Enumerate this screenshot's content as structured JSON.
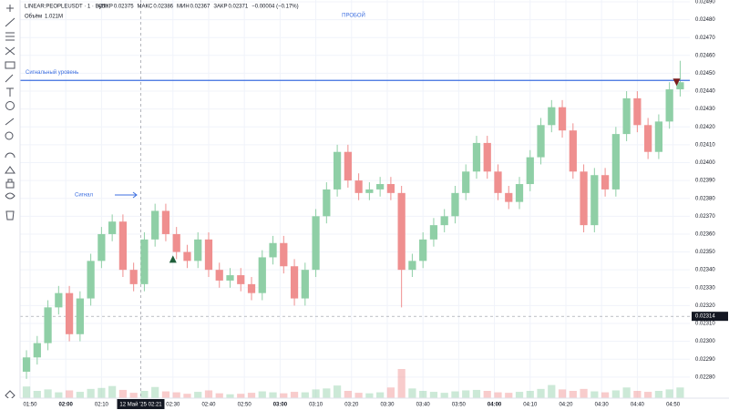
{
  "chart_data": {
    "type": "candlestick",
    "header": {
      "symbol": "LINEAR:PEOPLEUSDT · 1 · Bybit",
      "fields": [
        {
          "label": "ОТКР",
          "value": "0.02375"
        },
        {
          "label": "МАКС",
          "value": "0.02386"
        },
        {
          "label": "МИН",
          "value": "0.02367"
        },
        {
          "label": "ЗАКР",
          "value": "0.02371"
        }
      ],
      "change": "−0.00004 (−0.17%)",
      "volume_label": "Объём",
      "volume_value": "1.021M"
    },
    "title": "ПРОБОЙ",
    "level": {
      "label": "Сигнальный уровень",
      "value": 0.02446,
      "color": "#3d6fe0"
    },
    "signal_label": "Сигнал",
    "up_color": "#8fcfa6",
    "down_color": "#ef8f8f",
    "x": [
      109,
      112,
      115,
      118,
      121,
      124,
      127,
      130,
      133,
      136,
      139,
      142,
      145,
      148,
      151,
      154,
      157,
      160,
      163,
      166,
      169,
      172,
      175,
      178,
      181,
      184,
      187,
      190,
      193,
      196,
      199,
      202,
      205,
      208,
      211,
      214,
      217,
      220,
      223,
      226,
      229,
      232,
      235,
      238,
      241,
      244,
      247,
      250,
      253,
      256,
      259,
      262,
      265,
      268,
      271,
      274,
      277,
      280,
      283,
      286,
      289,
      292
    ],
    "open": [
      0.02283,
      0.02291,
      0.02299,
      0.02319,
      0.02327,
      0.02304,
      0.02324,
      0.02345,
      0.0236,
      0.02367,
      0.0234,
      0.02332,
      0.02357,
      0.02373,
      0.0236,
      0.0235,
      0.02345,
      0.02357,
      0.0234,
      0.02334,
      0.02337,
      0.02332,
      0.02327,
      0.02347,
      0.02355,
      0.02342,
      0.02324,
      0.0234,
      0.0237,
      0.02385,
      0.02406,
      0.0239,
      0.02383,
      0.02385,
      0.02388,
      0.02383,
      0.0234,
      0.02345,
      0.02357,
      0.02365,
      0.0237,
      0.02383,
      0.02395,
      0.02411,
      0.02395,
      0.02383,
      0.02378,
      0.02388,
      0.02403,
      0.02421,
      0.02431,
      0.02418,
      0.02395,
      0.02365,
      0.02393,
      0.02385,
      0.02416,
      0.02436,
      0.02421,
      0.02406,
      0.02423,
      0.02441
    ],
    "high": [
      0.02295,
      0.02303,
      0.02323,
      0.02331,
      0.02331,
      0.02328,
      0.02349,
      0.02364,
      0.02371,
      0.02371,
      0.02344,
      0.02361,
      0.02377,
      0.02377,
      0.02364,
      0.02354,
      0.02361,
      0.02361,
      0.02344,
      0.02341,
      0.02341,
      0.02336,
      0.02351,
      0.02359,
      0.02359,
      0.02346,
      0.02344,
      0.02374,
      0.02389,
      0.0241,
      0.0241,
      0.02394,
      0.02389,
      0.02392,
      0.02392,
      0.02387,
      0.02349,
      0.02361,
      0.02369,
      0.02374,
      0.02387,
      0.02399,
      0.02415,
      0.02415,
      0.02399,
      0.02387,
      0.02392,
      0.02407,
      0.02425,
      0.02435,
      0.02435,
      0.02422,
      0.02399,
      0.02397,
      0.02397,
      0.0242,
      0.0244,
      0.0244,
      0.02425,
      0.02427,
      0.02445,
      0.02457
    ],
    "low": [
      0.02279,
      0.02287,
      0.02295,
      0.02315,
      0.023,
      0.023,
      0.0232,
      0.02341,
      0.02356,
      0.02336,
      0.02328,
      0.02328,
      0.02353,
      0.02356,
      0.02346,
      0.02341,
      0.02341,
      0.02336,
      0.0233,
      0.0233,
      0.02328,
      0.02323,
      0.02323,
      0.02343,
      0.02338,
      0.0232,
      0.0232,
      0.02336,
      0.02366,
      0.02381,
      0.02386,
      0.02379,
      0.02379,
      0.02381,
      0.02379,
      0.02319,
      0.02336,
      0.02341,
      0.02353,
      0.02361,
      0.02366,
      0.02379,
      0.02391,
      0.02391,
      0.02379,
      0.02374,
      0.02374,
      0.02384,
      0.02399,
      0.02417,
      0.02414,
      0.02391,
      0.02361,
      0.02361,
      0.02381,
      0.02381,
      0.02412,
      0.02417,
      0.02402,
      0.02402,
      0.02419,
      0.02437
    ],
    "close": [
      0.02291,
      0.02299,
      0.02319,
      0.02327,
      0.02304,
      0.02324,
      0.02345,
      0.0236,
      0.02367,
      0.0234,
      0.02332,
      0.02357,
      0.02373,
      0.0236,
      0.0235,
      0.02345,
      0.02357,
      0.0234,
      0.02334,
      0.02337,
      0.02332,
      0.02327,
      0.02347,
      0.02355,
      0.02342,
      0.02324,
      0.0234,
      0.0237,
      0.02385,
      0.02406,
      0.0239,
      0.02383,
      0.02385,
      0.02388,
      0.02383,
      0.0234,
      0.02345,
      0.02357,
      0.02365,
      0.0237,
      0.02383,
      0.02395,
      0.02411,
      0.02395,
      0.02383,
      0.02378,
      0.02388,
      0.02403,
      0.02421,
      0.02431,
      0.02418,
      0.02395,
      0.02365,
      0.02393,
      0.02385,
      0.02416,
      0.02436,
      0.02421,
      0.02406,
      0.02423,
      0.02441,
      0.02445
    ],
    "volume": [
      2400000,
      1500000,
      1800000,
      1200000,
      1600000,
      1300000,
      1900000,
      2100000,
      2500000,
      1700000,
      1100000,
      1500000,
      2300000,
      1400000,
      1200000,
      900000,
      1300000,
      1600000,
      1000000,
      800000,
      900000,
      1100000,
      1400000,
      1200000,
      1000000,
      1300000,
      1200000,
      1800000,
      2000000,
      2600000,
      1500000,
      1100000,
      1000000,
      1200000,
      2200000,
      6000000,
      2000000,
      1500000,
      1300000,
      1100000,
      1400000,
      1600000,
      1700000,
      1500000,
      1200000,
      1100000,
      1300000,
      1500000,
      1900000,
      2700000,
      1800000,
      1500000,
      1900000,
      1400000,
      1200000,
      1600000,
      2200000,
      1500000,
      1300000,
      1500000,
      1800000,
      2200000
    ],
    "markers": [
      {
        "x": 150,
        "value": 0.02346,
        "direction": "up",
        "color": "#1e5e3a"
      },
      {
        "x": 291,
        "value": 0.02445,
        "direction": "down",
        "color": "#7a1c1c"
      }
    ],
    "crosshair": {
      "x": {
        "value": 141,
        "label": "12 Май '25  02:21"
      },
      "price": {
        "value": 0.02314,
        "label": "0.02314"
      }
    },
    "xlim": [
      107.2,
      294.7
    ],
    "xticks": [
      {
        "value": 110,
        "label": "01:50"
      },
      {
        "value": 120,
        "label": "02:00"
      },
      {
        "value": 130,
        "label": "02:10"
      },
      {
        "value": 150,
        "label": "02:30"
      },
      {
        "value": 160,
        "label": "02:40"
      },
      {
        "value": 170,
        "label": "02:50"
      },
      {
        "value": 180,
        "label": "03:00"
      },
      {
        "value": 190,
        "label": "03:10"
      },
      {
        "value": 200,
        "label": "03:20"
      },
      {
        "value": 210,
        "label": "03:30"
      },
      {
        "value": 220,
        "label": "03:40"
      },
      {
        "value": 230,
        "label": "03:50"
      },
      {
        "value": 240,
        "label": "04:00"
      },
      {
        "value": 250,
        "label": "04:10"
      },
      {
        "value": 260,
        "label": "04:20"
      },
      {
        "value": 270,
        "label": "04:30"
      },
      {
        "value": 280,
        "label": "04:40"
      },
      {
        "value": 290,
        "label": "04:50"
      }
    ],
    "ylim": [
      0.022682,
      0.02491
    ],
    "yticks": [
      {
        "value": 0.0228,
        "label": "0.02280"
      },
      {
        "value": 0.0229,
        "label": "0.02290"
      },
      {
        "value": 0.023,
        "label": "0.02300"
      },
      {
        "value": 0.0231,
        "label": "0.02310"
      },
      {
        "value": 0.0232,
        "label": "0.02320"
      },
      {
        "value": 0.0233,
        "label": "0.02330"
      },
      {
        "value": 0.0234,
        "label": "0.02340"
      },
      {
        "value": 0.0235,
        "label": "0.02350"
      },
      {
        "value": 0.0236,
        "label": "0.02360"
      },
      {
        "value": 0.0237,
        "label": "0.02370"
      },
      {
        "value": 0.0238,
        "label": "0.02380"
      },
      {
        "value": 0.0239,
        "label": "0.02390"
      },
      {
        "value": 0.024,
        "label": "0.02400"
      },
      {
        "value": 0.0241,
        "label": "0.02410"
      },
      {
        "value": 0.0242,
        "label": "0.02420"
      },
      {
        "value": 0.0243,
        "label": "0.02430"
      },
      {
        "value": 0.0244,
        "label": "0.02440"
      },
      {
        "value": 0.0245,
        "label": "0.02450"
      },
      {
        "value": 0.0246,
        "label": "0.02460"
      },
      {
        "value": 0.0247,
        "label": "0.02470"
      },
      {
        "value": 0.0248,
        "label": "0.02480"
      },
      {
        "value": 0.0249,
        "label": "0.02490"
      }
    ],
    "grid": true
  }
}
